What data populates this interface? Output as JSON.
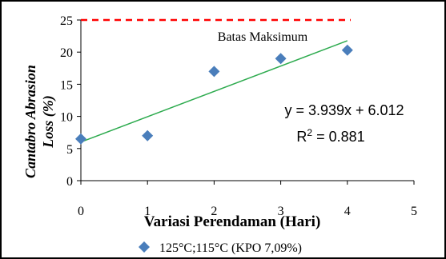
{
  "chart_data": {
    "type": "scatter",
    "ylabel_line1": "Cantabro Abrasion",
    "ylabel_line2": "Loss (%)",
    "xlabel": "Variasi Perendaman (Hari)",
    "xlim": [
      0,
      5
    ],
    "ylim": [
      0,
      25
    ],
    "x_ticks": [
      "0",
      "1",
      "2",
      "3",
      "4",
      "5"
    ],
    "y_ticks": [
      "0",
      "5",
      "10",
      "15",
      "20",
      "25"
    ],
    "series": [
      {
        "name": "125°C;115°C (KPO 7,09%)",
        "color": "#4a7ebb",
        "marker": "diamond",
        "points": [
          {
            "x": 0,
            "y": 6.5
          },
          {
            "x": 1,
            "y": 7.0
          },
          {
            "x": 2,
            "y": 17.0
          },
          {
            "x": 3,
            "y": 19.0
          },
          {
            "x": 4,
            "y": 20.3
          }
        ]
      }
    ],
    "trendline": {
      "color": "#2eab4f",
      "slope": 3.939,
      "intercept": 6.012,
      "x_range": [
        0,
        4
      ],
      "equation": "y = 3.939x + 6.012",
      "r2_label": "R",
      "r2_sup": "2",
      "r2_value": " = 0.881"
    },
    "limit_line": {
      "y": 25,
      "color": "#ff0000",
      "label": "Batas Maksimum"
    },
    "legend_position": "bottom"
  }
}
